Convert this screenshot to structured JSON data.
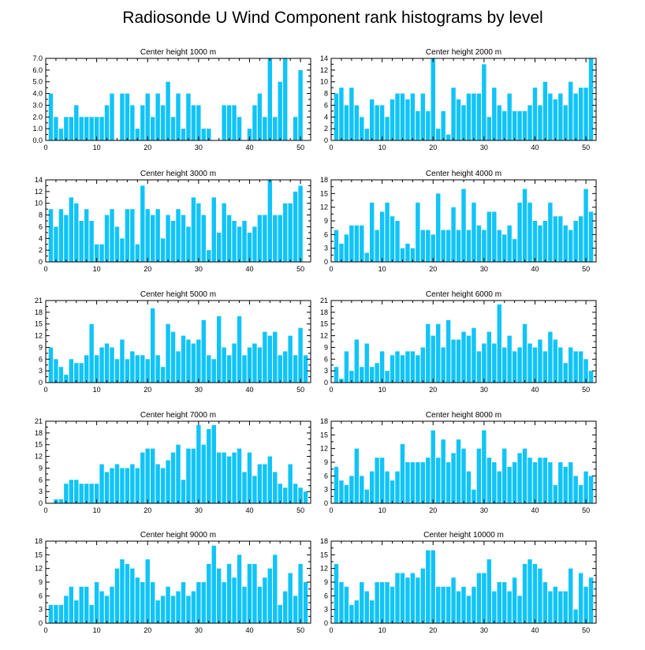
{
  "title": "Radiosonde U Wind Component rank histograms by level",
  "colors": {
    "bar": "#10c4f8",
    "axis": "#000000"
  },
  "chart_data": [
    {
      "type": "bar",
      "title": "Center height 1000 m",
      "xlim": [
        0,
        52
      ],
      "ylim": [
        0,
        7
      ],
      "xticks": [
        0,
        10,
        20,
        30,
        40,
        50
      ],
      "yticks": [
        0,
        1,
        2,
        3,
        4,
        5,
        6,
        7
      ],
      "ytick_labels": [
        "0.0",
        "1.0",
        "2.0",
        "3.0",
        "4.0",
        "5.0",
        "6.0",
        "7.0"
      ],
      "categories": [
        1,
        2,
        3,
        4,
        5,
        6,
        7,
        8,
        9,
        10,
        11,
        12,
        13,
        14,
        15,
        16,
        17,
        18,
        19,
        20,
        21,
        22,
        23,
        24,
        25,
        26,
        27,
        28,
        29,
        30,
        31,
        32,
        33,
        34,
        35,
        36,
        37,
        38,
        39,
        40,
        41,
        42,
        43,
        44,
        45,
        46,
        47,
        48,
        49,
        50,
        51
      ],
      "values": [
        4,
        2,
        1,
        2,
        2,
        3,
        2,
        2,
        2,
        2,
        2,
        3,
        4,
        0,
        4,
        4,
        3,
        1,
        3,
        4,
        2,
        4,
        3,
        5,
        2,
        4,
        1,
        4,
        3,
        3,
        1,
        1,
        0,
        0,
        3,
        3,
        3,
        2,
        0,
        1,
        3,
        4,
        2,
        7,
        2,
        5,
        7,
        0,
        2,
        6,
        0
      ]
    },
    {
      "type": "bar",
      "title": "Center height 2000 m",
      "xlim": [
        0,
        52
      ],
      "ylim": [
        0,
        14
      ],
      "xticks": [
        0,
        10,
        20,
        30,
        40,
        50
      ],
      "yticks": [
        0,
        2,
        4,
        6,
        8,
        10,
        12,
        14
      ],
      "ytick_labels": [
        "0",
        "2",
        "4",
        "6",
        "8",
        "10",
        "12",
        "14"
      ],
      "categories": [
        1,
        2,
        3,
        4,
        5,
        6,
        7,
        8,
        9,
        10,
        11,
        12,
        13,
        14,
        15,
        16,
        17,
        18,
        19,
        20,
        21,
        22,
        23,
        24,
        25,
        26,
        27,
        28,
        29,
        30,
        31,
        32,
        33,
        34,
        35,
        36,
        37,
        38,
        39,
        40,
        41,
        42,
        43,
        44,
        45,
        46,
        47,
        48,
        49,
        50,
        51
      ],
      "values": [
        8,
        9,
        6,
        9,
        6,
        4,
        2,
        7,
        6,
        6,
        4,
        7,
        8,
        8,
        7,
        8,
        5,
        8,
        5,
        14,
        2,
        5,
        1,
        9,
        7,
        6,
        8,
        8,
        8,
        13,
        4,
        9,
        6,
        5,
        8,
        5,
        5,
        5,
        6,
        9,
        6,
        10,
        8,
        7,
        8,
        6,
        10,
        8,
        9,
        9,
        14
      ]
    },
    {
      "type": "bar",
      "title": "Center height 3000 m",
      "xlim": [
        0,
        52
      ],
      "ylim": [
        0,
        14
      ],
      "xticks": [
        0,
        10,
        20,
        30,
        40,
        50
      ],
      "yticks": [
        0,
        2,
        4,
        6,
        8,
        10,
        12,
        14
      ],
      "ytick_labels": [
        "0",
        "2",
        "4",
        "6",
        "8",
        "10",
        "12",
        "14"
      ],
      "categories": [
        1,
        2,
        3,
        4,
        5,
        6,
        7,
        8,
        9,
        10,
        11,
        12,
        13,
        14,
        15,
        16,
        17,
        18,
        19,
        20,
        21,
        22,
        23,
        24,
        25,
        26,
        27,
        28,
        29,
        30,
        31,
        32,
        33,
        34,
        35,
        36,
        37,
        38,
        39,
        40,
        41,
        42,
        43,
        44,
        45,
        46,
        47,
        48,
        49,
        50,
        51
      ],
      "values": [
        9,
        6,
        9,
        8,
        11,
        10,
        7,
        9,
        7,
        3,
        3,
        8,
        9,
        6,
        4,
        9,
        9,
        3,
        13,
        9,
        8,
        9,
        4,
        8,
        7,
        9,
        8,
        6,
        11,
        10,
        8,
        2,
        11,
        5,
        10,
        8,
        7,
        6,
        7,
        5,
        6,
        8,
        8,
        14,
        8,
        8,
        10,
        10,
        12,
        13,
        0
      ]
    },
    {
      "type": "bar",
      "title": "Center height 4000 m",
      "xlim": [
        0,
        52
      ],
      "ylim": [
        0,
        18
      ],
      "xticks": [
        0,
        10,
        20,
        30,
        40,
        50
      ],
      "yticks": [
        0,
        3,
        6,
        9,
        12,
        15,
        18
      ],
      "ytick_labels": [
        "0",
        "3",
        "6",
        "9",
        "12",
        "15",
        "18"
      ],
      "categories": [
        1,
        2,
        3,
        4,
        5,
        6,
        7,
        8,
        9,
        10,
        11,
        12,
        13,
        14,
        15,
        16,
        17,
        18,
        19,
        20,
        21,
        22,
        23,
        24,
        25,
        26,
        27,
        28,
        29,
        30,
        31,
        32,
        33,
        34,
        35,
        36,
        37,
        38,
        39,
        40,
        41,
        42,
        43,
        44,
        45,
        46,
        47,
        48,
        49,
        50,
        51
      ],
      "values": [
        7,
        4,
        6,
        8,
        8,
        8,
        2,
        13,
        7,
        11,
        13,
        10,
        9,
        3,
        4,
        3,
        13,
        7,
        7,
        6,
        15,
        7,
        7,
        12,
        7,
        16,
        7,
        13,
        8,
        7,
        11,
        11,
        7,
        6,
        8,
        5,
        13,
        16,
        13,
        9,
        8,
        9,
        13,
        10,
        10,
        8,
        7,
        9,
        10,
        16,
        11
      ]
    },
    {
      "type": "bar",
      "title": "Center height 5000 m",
      "xlim": [
        0,
        52
      ],
      "ylim": [
        0,
        21
      ],
      "xticks": [
        0,
        10,
        20,
        30,
        40,
        50
      ],
      "yticks": [
        0,
        3,
        6,
        9,
        12,
        15,
        18,
        21
      ],
      "ytick_labels": [
        "0",
        "3",
        "6",
        "9",
        "12",
        "15",
        "18",
        "21"
      ],
      "categories": [
        1,
        2,
        3,
        4,
        5,
        6,
        7,
        8,
        9,
        10,
        11,
        12,
        13,
        14,
        15,
        16,
        17,
        18,
        19,
        20,
        21,
        22,
        23,
        24,
        25,
        26,
        27,
        28,
        29,
        30,
        31,
        32,
        33,
        34,
        35,
        36,
        37,
        38,
        39,
        40,
        41,
        42,
        43,
        44,
        45,
        46,
        47,
        48,
        49,
        50,
        51
      ],
      "values": [
        9,
        6,
        4,
        2,
        6,
        5,
        5,
        7,
        15,
        7,
        9,
        10,
        9,
        6,
        11,
        6,
        8,
        7,
        7,
        6,
        19,
        7,
        4,
        15,
        13,
        8,
        12,
        11,
        10,
        11,
        16,
        7,
        6,
        17,
        9,
        7,
        10,
        17,
        7,
        9,
        10,
        9,
        13,
        12,
        13,
        7,
        8,
        12,
        7,
        14,
        7
      ]
    },
    {
      "type": "bar",
      "title": "Center height 6000 m",
      "xlim": [
        0,
        52
      ],
      "ylim": [
        0,
        21
      ],
      "xticks": [
        0,
        10,
        20,
        30,
        40,
        50
      ],
      "yticks": [
        0,
        3,
        6,
        9,
        12,
        15,
        18,
        21
      ],
      "ytick_labels": [
        "0",
        "3",
        "6",
        "9",
        "12",
        "15",
        "18",
        "21"
      ],
      "categories": [
        1,
        2,
        3,
        4,
        5,
        6,
        7,
        8,
        9,
        10,
        11,
        12,
        13,
        14,
        15,
        16,
        17,
        18,
        19,
        20,
        21,
        22,
        23,
        24,
        25,
        26,
        27,
        28,
        29,
        30,
        31,
        32,
        33,
        34,
        35,
        36,
        37,
        38,
        39,
        40,
        41,
        42,
        43,
        44,
        45,
        46,
        47,
        48,
        49,
        50,
        51
      ],
      "values": [
        4,
        1,
        8,
        3,
        11,
        4,
        10,
        4,
        5,
        8,
        3,
        7,
        8,
        7,
        8,
        8,
        7,
        9,
        15,
        12,
        15,
        9,
        16,
        11,
        11,
        13,
        12,
        14,
        8,
        10,
        13,
        10,
        20,
        9,
        12,
        8,
        9,
        15,
        10,
        9,
        11,
        8,
        13,
        11,
        9,
        5,
        9,
        8,
        8,
        6,
        3
      ]
    },
    {
      "type": "bar",
      "title": "Center height 7000 m",
      "xlim": [
        0,
        52
      ],
      "ylim": [
        0,
        21
      ],
      "xticks": [
        0,
        10,
        20,
        30,
        40,
        50
      ],
      "yticks": [
        0,
        3,
        6,
        9,
        12,
        15,
        18,
        21
      ],
      "ytick_labels": [
        "0",
        "3",
        "6",
        "9",
        "12",
        "15",
        "18",
        "21"
      ],
      "categories": [
        1,
        2,
        3,
        4,
        5,
        6,
        7,
        8,
        9,
        10,
        11,
        12,
        13,
        14,
        15,
        16,
        17,
        18,
        19,
        20,
        21,
        22,
        23,
        24,
        25,
        26,
        27,
        28,
        29,
        30,
        31,
        32,
        33,
        34,
        35,
        36,
        37,
        38,
        39,
        40,
        41,
        42,
        43,
        44,
        45,
        46,
        47,
        48,
        49,
        50,
        51
      ],
      "values": [
        0,
        1,
        1,
        5,
        6,
        6,
        5,
        5,
        5,
        5,
        10,
        8,
        9,
        10,
        9,
        9,
        10,
        9,
        13,
        14,
        14,
        10,
        9,
        11,
        13,
        15,
        6,
        14,
        14,
        20,
        15,
        19,
        20,
        13,
        13,
        12,
        13,
        14,
        8,
        13,
        7,
        10,
        10,
        12,
        8,
        5,
        4,
        10,
        5,
        4,
        3
      ]
    },
    {
      "type": "bar",
      "title": "Center height 8000 m",
      "xlim": [
        0,
        52
      ],
      "ylim": [
        0,
        18
      ],
      "xticks": [
        0,
        10,
        20,
        30,
        40,
        50
      ],
      "yticks": [
        0,
        3,
        6,
        9,
        12,
        15,
        18
      ],
      "ytick_labels": [
        "0",
        "3",
        "6",
        "9",
        "12",
        "15",
        "18"
      ],
      "categories": [
        1,
        2,
        3,
        4,
        5,
        6,
        7,
        8,
        9,
        10,
        11,
        12,
        13,
        14,
        15,
        16,
        17,
        18,
        19,
        20,
        21,
        22,
        23,
        24,
        25,
        26,
        27,
        28,
        29,
        30,
        31,
        32,
        33,
        34,
        35,
        36,
        37,
        38,
        39,
        40,
        41,
        42,
        43,
        44,
        45,
        46,
        47,
        48,
        49,
        50,
        51
      ],
      "values": [
        8,
        5,
        4,
        6,
        12,
        6,
        3,
        7,
        10,
        10,
        7,
        5,
        7,
        13,
        9,
        9,
        9,
        9,
        10,
        16,
        10,
        14,
        9,
        11,
        14,
        12,
        7,
        3,
        12,
        16,
        10,
        9,
        7,
        12,
        8,
        9,
        11,
        12,
        10,
        9,
        10,
        10,
        9,
        4,
        9,
        8,
        9,
        6,
        4,
        7,
        6
      ]
    },
    {
      "type": "bar",
      "title": "Center height 9000 m",
      "xlim": [
        0,
        52
      ],
      "ylim": [
        0,
        18
      ],
      "xticks": [
        0,
        10,
        20,
        30,
        40,
        50
      ],
      "yticks": [
        0,
        3,
        6,
        9,
        12,
        15,
        18
      ],
      "ytick_labels": [
        "0",
        "3",
        "6",
        "9",
        "12",
        "15",
        "18"
      ],
      "categories": [
        1,
        2,
        3,
        4,
        5,
        6,
        7,
        8,
        9,
        10,
        11,
        12,
        13,
        14,
        15,
        16,
        17,
        18,
        19,
        20,
        21,
        22,
        23,
        24,
        25,
        26,
        27,
        28,
        29,
        30,
        31,
        32,
        33,
        34,
        35,
        36,
        37,
        38,
        39,
        40,
        41,
        42,
        43,
        44,
        45,
        46,
        47,
        48,
        49,
        50,
        51
      ],
      "values": [
        4,
        4,
        4,
        6,
        8,
        5,
        8,
        8,
        4,
        9,
        7,
        6,
        8,
        12,
        14,
        13,
        12,
        10,
        9,
        14,
        9,
        5,
        6,
        8,
        6,
        7,
        9,
        6,
        7,
        9,
        9,
        13,
        17,
        12,
        9,
        13,
        10,
        15,
        8,
        13,
        13,
        8,
        10,
        12,
        15,
        4,
        7,
        11,
        6,
        13,
        9
      ]
    },
    {
      "type": "bar",
      "title": "Center height 10000 m",
      "xlim": [
        0,
        52
      ],
      "ylim": [
        0,
        18
      ],
      "xticks": [
        0,
        10,
        20,
        30,
        40,
        50
      ],
      "yticks": [
        0,
        3,
        6,
        9,
        12,
        15,
        18
      ],
      "ytick_labels": [
        "0",
        "3",
        "6",
        "9",
        "12",
        "15",
        "18"
      ],
      "categories": [
        1,
        2,
        3,
        4,
        5,
        6,
        7,
        8,
        9,
        10,
        11,
        12,
        13,
        14,
        15,
        16,
        17,
        18,
        19,
        20,
        21,
        22,
        23,
        24,
        25,
        26,
        27,
        28,
        29,
        30,
        31,
        32,
        33,
        34,
        35,
        36,
        37,
        38,
        39,
        40,
        41,
        42,
        43,
        44,
        45,
        46,
        47,
        48,
        49,
        50,
        51
      ],
      "values": [
        13,
        9,
        8,
        4,
        5,
        9,
        7,
        5,
        9,
        9,
        9,
        8,
        11,
        11,
        10,
        11,
        10,
        12,
        16,
        16,
        8,
        8,
        8,
        10,
        7,
        8,
        6,
        8,
        11,
        11,
        14,
        7,
        9,
        9,
        7,
        10,
        6,
        13,
        14,
        13,
        12,
        9,
        7,
        8,
        7,
        7,
        12,
        3,
        11,
        8,
        10
      ]
    }
  ]
}
